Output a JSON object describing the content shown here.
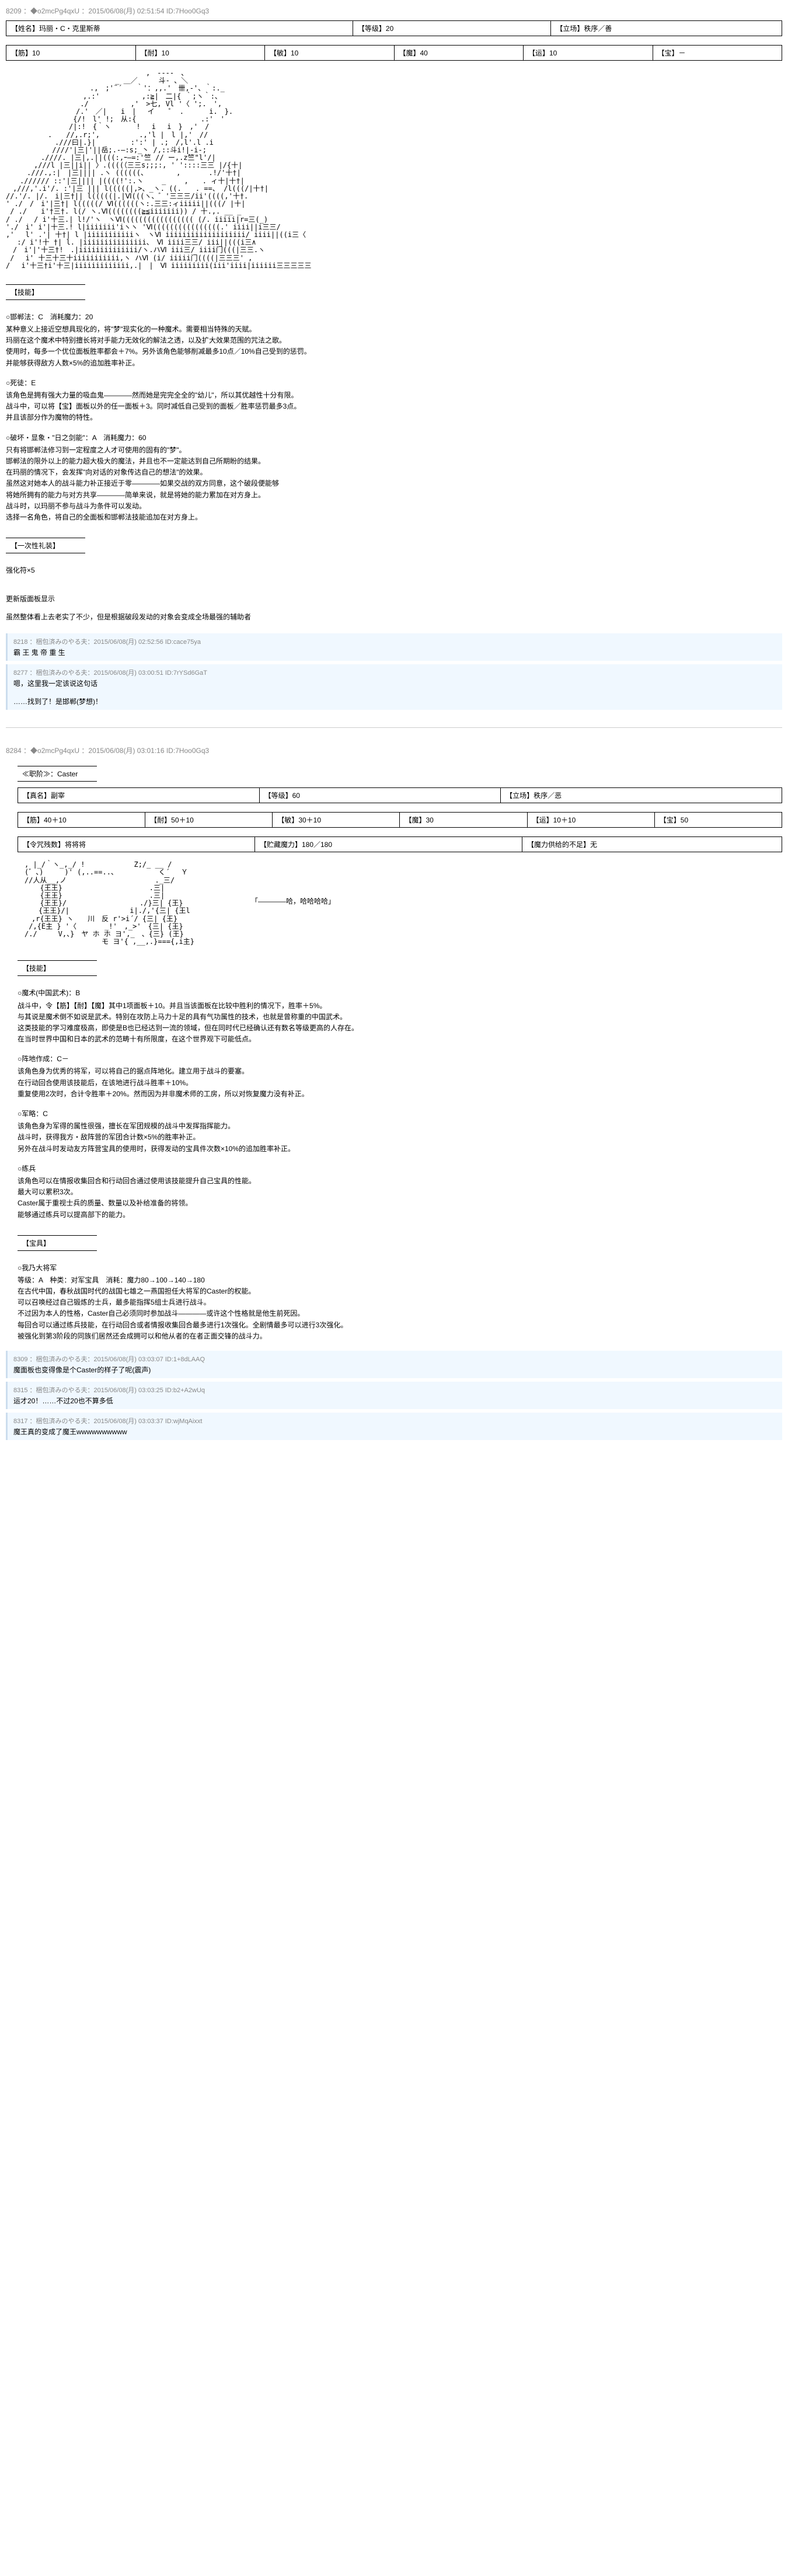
{
  "post1": {
    "header": "8209 ：◆o2mcPg4qxU ：2015/06/08(月) 02:51:54 ID:7Hoo0Gq3",
    "row1": [
      {
        "k": "【姓名】",
        "v": "玛丽・C・克里斯蒂"
      },
      {
        "k": "【等级】",
        "v": "20"
      },
      {
        "k": "【立场】",
        "v": "秩序／善"
      }
    ],
    "row2": [
      {
        "k": "【筋】",
        "v": "10"
      },
      {
        "k": "【耐】",
        "v": "10"
      },
      {
        "k": "【敏】",
        "v": "10"
      },
      {
        "k": "【魔】",
        "v": "40"
      },
      {
        "k": "【运】",
        "v": "10"
      },
      {
        "k": "【宝】",
        "v": "－"
      }
    ],
    "skills_header": "【技能】",
    "skills": [
      {
        "name": "○邯郸法：C　消耗魔力：20",
        "lines": [
          "某种意义上接近空想具现化的，将\"梦\"现实化的一种魔术。需要相当特殊的天赋。",
          "玛丽在这个魔术中特别擅长将对手能力无效化的解法之透，以及扩大效果范围的咒法之歌。",
          "使用时，每多一个优位面板胜率都会＋7%。另外该角色能够削减最多10点／10%自己受到的惩罚。",
          "并能够获得敌方人数×5%的追加胜率补正。"
        ]
      },
      {
        "name": "○死徒：E",
        "lines": [
          "该角色是拥有强大力量的吸血鬼————然而她是完完全全的\"幼儿\"，所以其优越性十分有限。",
          "战斗中，可以将【宝】面板以外的任一面板＋3。同时减低自己受到的面板／胜率惩罚最多3点。",
          "并且该部分作为魔物的特性。"
        ]
      },
      {
        "name": "○破坏・显象・\"日之剑能\"：A　消耗魔力：60",
        "lines": [
          "只有将邯郸法修习到一定程度之人才可使用的固有的\"梦\"。",
          "邯郸法的限外以上的能力超大极大的魔法，并且也不一定能达到自己所期盼的结果。",
          "在玛丽的情况下，会发挥\"向对话的对象传达自己的想法\"的效果。",
          "虽然这对她本人的战斗能力补正接近于零————如果交战的双方同意，这个破段便能够",
          "将她所拥有的能力与对方共享————简单来说，就是将她的能力累加在对方身上。",
          "战斗时，以玛丽不参与战斗为条件可以发动。",
          "选择一名角色，将自己的全面板和邯郸法技能追加在对方身上。"
        ]
      }
    ],
    "oneoff_header": "【一次性礼装】",
    "oneoff_text": "强化符×5",
    "update_title": "更新版面板显示",
    "update_text": "虽然整体看上去老实了不少，但是根据破段发动的对象会变成全场最强的辅助者",
    "replies": [
      {
        "hdr": "8218 ：梱包済みのやる夫：2015/06/08(月) 02:52:56 ID:cace75ya",
        "body": "霸 王 鬼 帝 重 生"
      },
      {
        "hdr": "8277 ：梱包済みのやる夫：2015/06/08(月) 03:00:51 ID:7rYSd6GaT",
        "body": "嗯，这里我一定该说这句话\n\n……找到了！是邯郸(梦想)！"
      }
    ]
  },
  "post2": {
    "header": "8284 ：◆o2mcPg4qxU ：2015/06/08(月) 03:01:16 ID:7Hoo0Gq3",
    "class_header": "≪职阶≫：Caster",
    "row1": [
      {
        "k": "【真名】",
        "v": "副宰"
      },
      {
        "k": "【等级】",
        "v": "60"
      },
      {
        "k": "【立场】",
        "v": "秩序／恶"
      }
    ],
    "row2": [
      {
        "k": "【筋】",
        "v": "40＋10"
      },
      {
        "k": "【耐】",
        "v": "50＋10"
      },
      {
        "k": "【敏】",
        "v": "30＋10"
      },
      {
        "k": "【魔】",
        "v": "30"
      },
      {
        "k": "【运】",
        "v": "10＋10"
      },
      {
        "k": "【宝】",
        "v": "50"
      }
    ],
    "row3": [
      {
        "k": "【令咒残数】",
        "v": "将将将"
      },
      {
        "k": "【贮藏魔力】",
        "v": "180／180"
      },
      {
        "k": "【魔力供给的不足】",
        "v": "无"
      }
    ],
    "art_caption": "「————哈，哈哈哈哈」",
    "skills_header": "【技能】",
    "skills": [
      {
        "name": "○魔术(中国武术)：B",
        "lines": [
          "战斗中，令【筋】【耐】【魔】其中1项面板＋10。并且当该面板在比较中胜利的情况下，胜率＋5%。",
          "与其说是魔术倒不如说是武术。特别在攻防上马力十足的具有气功属性的技术，也就是曾称重的中国武术。",
          "这类技能的学习难度极高，即使是B也已经达到一流的领域，但在同时代已经确认还有数名等级更高的人存在。",
          "在当时世界中国和日本的武术的范畴十有所限度，在这个世界观下可能低点。"
        ]
      },
      {
        "name": "○阵地作成：C－",
        "lines": [
          "该角色身为优秀的将军，可以将自己的据点阵地化。建立用于战斗的要塞。",
          "在行动回合使用该技能后，在该地进行战斗胜率＋10%。",
          "重复使用2次时，合计令胜率＋20%。然而因为并非魔术师的工房，所以对恢复魔力没有补正。"
        ]
      },
      {
        "name": "○军略：C",
        "lines": [
          "该角色身为军得的属性很强，擅长在军团规模的战斗中发挥指挥能力。",
          "战斗时，获得我方・敌阵营的军团合计数×5%的胜率补正。",
          "另外在战斗时发动友方阵营宝具的使用时，获得发动的宝具件次数×10%的追加胜率补正。"
        ]
      },
      {
        "name": "○练兵",
        "lines": [
          "该角色可以在情报收集回合和行动回合通过使用该技能提升自己宝具的性能。",
          "最大可以累积3次。",
          "Caster属于重视士兵的质量、数量以及补给准备的将领。",
          "能够通过练兵可以提高部下的能力。"
        ]
      }
    ],
    "np_header": "【宝具】",
    "np": {
      "name": "○我乃大将军",
      "lines": [
        "等级：A　种类：对军宝具　消耗：魔力80→100→140→180",
        "在古代中国，春秋战国时代的战国七雄之一燕国担任大将军的Caster的权能。",
        "可以召唤经过自己锻炼的士兵，最多能指挥5组士兵进行战斗。",
        "不过因为本人的性格，Caster自己必须同时参加战斗————或许这个性格就是他生前死因。",
        "每回合可以通过练兵技能，在行动回合或者情报收集回合最多进行1次强化。全剧情最多可以进行3次强化。",
        "被强化到第3阶段的同族们居然还会成拥可以和他从者的在者正面交锋的战斗力。"
      ]
    },
    "replies": [
      {
        "hdr": "8309 ：梱包済みのやる夫：2015/06/08(月) 03:03:07 ID:1+8dLAAQ",
        "body": "魔面板也变得像是个Caster的样子了呢(震声)"
      },
      {
        "hdr": "8315 ：梱包済みのやる夫：2015/06/08(月) 03:03:25 ID:b2+A2wUq",
        "body": "运才20！……不过20也不算多低"
      },
      {
        "hdr": "8317 ：梱包済みのやる夫：2015/06/08(月) 03:03:37 ID:wjMqAixxt",
        "body": "魔王真的变成了魔王wwwwwwwwww"
      }
    ]
  },
  "ascii1": "　　　　　　　　　　　　　　　　　　　　,　----　、\n　　　　　　　　　　　　　　　 _ ＿／　　　斗- 、＼\n　　　　　　　　　　　　.,　;'¨´　　｀'：,,.'　卌,-'、｀:._\n　　　　　　　　　　　,.:'　　　　　　,:≧|　二|{ ｀;ヽ｀:、\n　　　　　　　　　　 ./　　　　　　,'　>七, Vl '〈 ';.　',\n　　　　　　　　　　/.'　／|　　i　|　 イ　　゜ .　　　 i.　}.\n　　　　　　　　　 {/!　l' !;　从:{　 　　　　　　　 .:'　'\n　　　　　　　　　/|:!　{｀ヽ　　　 !　 i　 i　}　,'　/\n　　　　　　.　　//,.r;',　　　　　 .,'l |　l |,'　//\n　　　　　　　.///曰|.}|　　　　　:':' | .;　/,l'.l .i\n　　　　　　 ////'|三|'||岳;.-―:s;_丶 /,::斗i!|-i-;\n　　　　　.////. |三|,.||(((:,ｰ―=:'竺 // ー,.z竺\"l'/|\n　　　　,///l |三||i|| 〉.((((（三三s;;;:, ' '::::三三 |/{十|\n　　　.///.,:|　|三|||| .ヽ ((((((、　　　　 ,　　　　.!/'十†|\n　　.////// ::'|三|||| |((((!':.ヽ　　 _　　 ,　　. ィ十|十†|\n　,///,'.i'/. :'|三 ||| l(((((|,>、_ヽ. ((.　　. ==、 /l(((/|十†|\n//.'/. |/.　i|三†|| l(((((|.|Ⅵ(((ヽ、゛'三三三/ii'((((,'十†.\n' ./　/　i'|三†| l(((((/ Ⅵ((((((ヽ:.三三:ィiiiii||(((/ |十|\n / ./　　i'†三†. l(/ ヽ.Ⅵ((((((((≧≦iiiiiii)) / 十.,. __ _\n/ ./　 / i'十三.| l!/'ヽ　ヽⅥ((((((((((((((((( (/. iiiii|r=三(_)\n'./　i' i'|十三.! l|iiiiiii'iヽヽ 'Ⅵ((((((((((((((((.' iiii||i三三/\n,'　 l' .'| 十†| l |iiiiiiiiiiiヽ　ヽⅥ iiiiiiiiiiiiiiiiiii/ iiii||((i三〈\n　 :/ i'!十 †| l. |iiiiiiiiiiiiiii、　Ⅵ iiii三三/ iii||(((i三∧\n　/　i'|'十三†!　.|iiiiiiiiiiiiii/ヽ.ハⅥ iii三/ iiii门(((|三三.ヽ\n /　 i' 十三十三十iiiiiiiiiii,ヽ ハⅥ (i/ iiiii门((((|三三三' ,\n/　 i'十三†i'十三|iiiiiiiiiiiii,.|　|　Ⅵ iiiiiiiii(iii'iiii|iiiiii三三三三三",
  "ascii2": "　, |_/｀ヽ_,_/ !　　　　　　　Z;/_ __ /\n　(゛、)　　　)' (,..==..、 　　 　 　く´ 　Ｙ\n　//人从__,ノ　 　　　　 　 　 　 　 ._三/\n　 　 {王王}　　　　　　　 　 　 　 .三|\n　 　 {王王}　　　　　　　 　 　 　 .三|\n　 　 {王王}/　　　　　 　 　 　 ./}三| {王}\n　　　{王王}/| 　 　 　 　 　 i|./,'{三| {王l\n　　,r{王王} ヽ　　川　反 r'>i´/ {三| {王}\n　 /,{E主 } '〈　　　　_!'　,_>'　{三| {王}\n　/./　　　V,、}　ヤ ホ ホ ヨ',_　、{三} (王}\n　　　　　 　 　 　 　 モ ヨ'{ ,__,.}==={,i主}"
}
